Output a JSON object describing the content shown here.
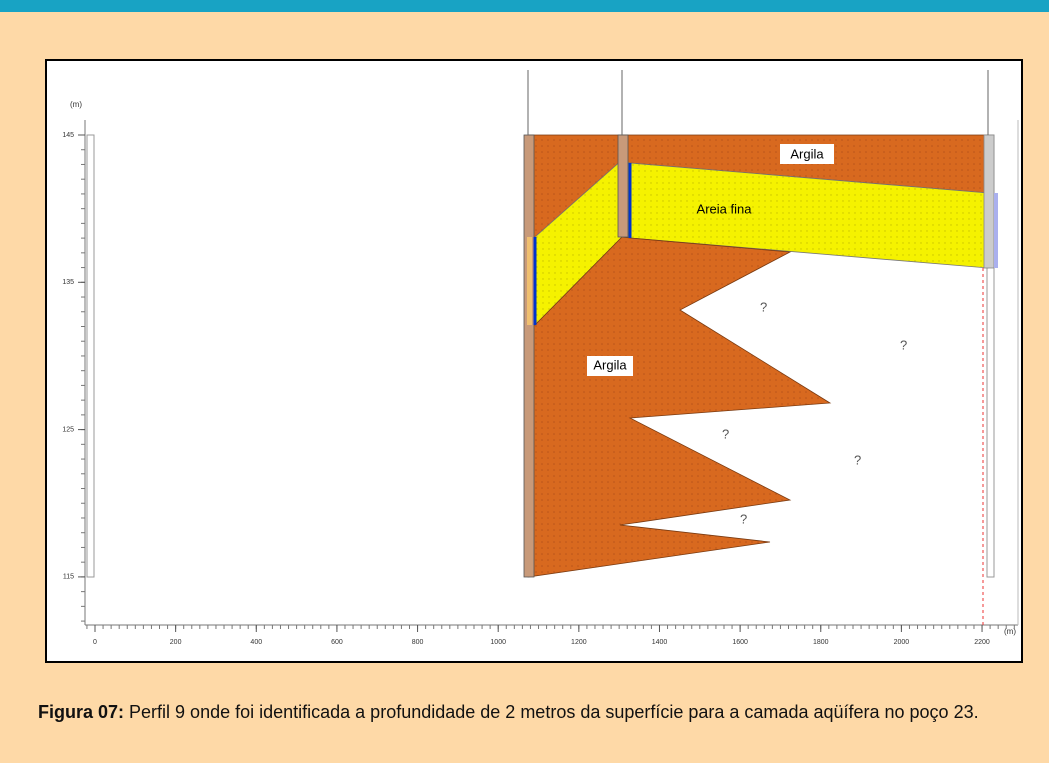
{
  "figure": {
    "y_unit": "(m)",
    "x_unit": "(m)",
    "xticks": [
      0,
      200,
      400,
      600,
      800,
      1000,
      1200,
      1400,
      1600,
      1800,
      2000,
      2200
    ],
    "yticks": [
      145,
      135,
      125,
      115
    ],
    "labels": {
      "argila_top": "Argila",
      "areia": "Areia fina",
      "argila_main": "Argila",
      "questions": [
        "?",
        "?",
        "?",
        "?",
        "?"
      ]
    }
  },
  "caption": {
    "label": "Figura 07:",
    "text": " Perfil 9 onde foi identificada a profundidade de 2 metros da superfície para a camada aqüífera no poço 23."
  }
}
